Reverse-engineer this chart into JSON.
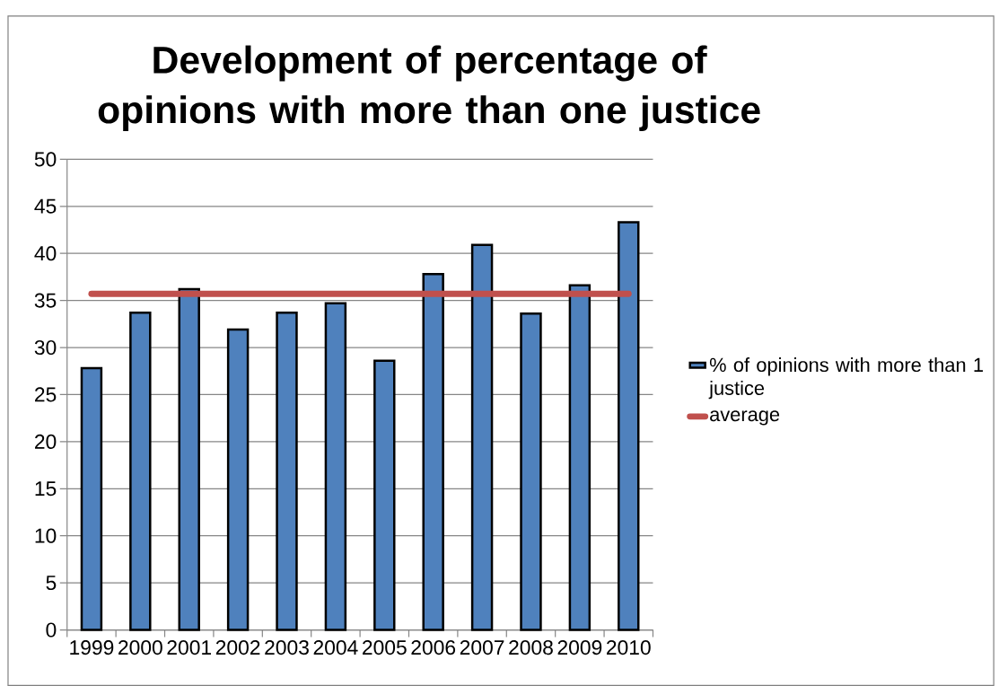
{
  "chart_data": {
    "type": "bar",
    "title": "Development of percentage of opinions with more than one justice",
    "categories": [
      "1999",
      "2000",
      "2001",
      "2002",
      "2003",
      "2004",
      "2005",
      "2006",
      "2007",
      "2008",
      "2009",
      "2010"
    ],
    "series": [
      {
        "name": "% of opinions with more than 1 justice",
        "color": "#4f81bd",
        "values": [
          27.8,
          33.7,
          36.2,
          31.9,
          33.7,
          34.7,
          28.6,
          37.8,
          40.9,
          33.6,
          36.6,
          43.3
        ]
      },
      {
        "name": "average",
        "type": "line",
        "color": "#c0504d",
        "values": [
          35.7,
          35.7,
          35.7,
          35.7,
          35.7,
          35.7,
          35.7,
          35.7,
          35.7,
          35.7,
          35.7,
          35.7
        ]
      }
    ],
    "ylim": [
      0,
      50
    ],
    "yticks": [
      0,
      5,
      10,
      15,
      20,
      25,
      30,
      35,
      40,
      45,
      50
    ],
    "grid": "y",
    "legend": "right"
  }
}
